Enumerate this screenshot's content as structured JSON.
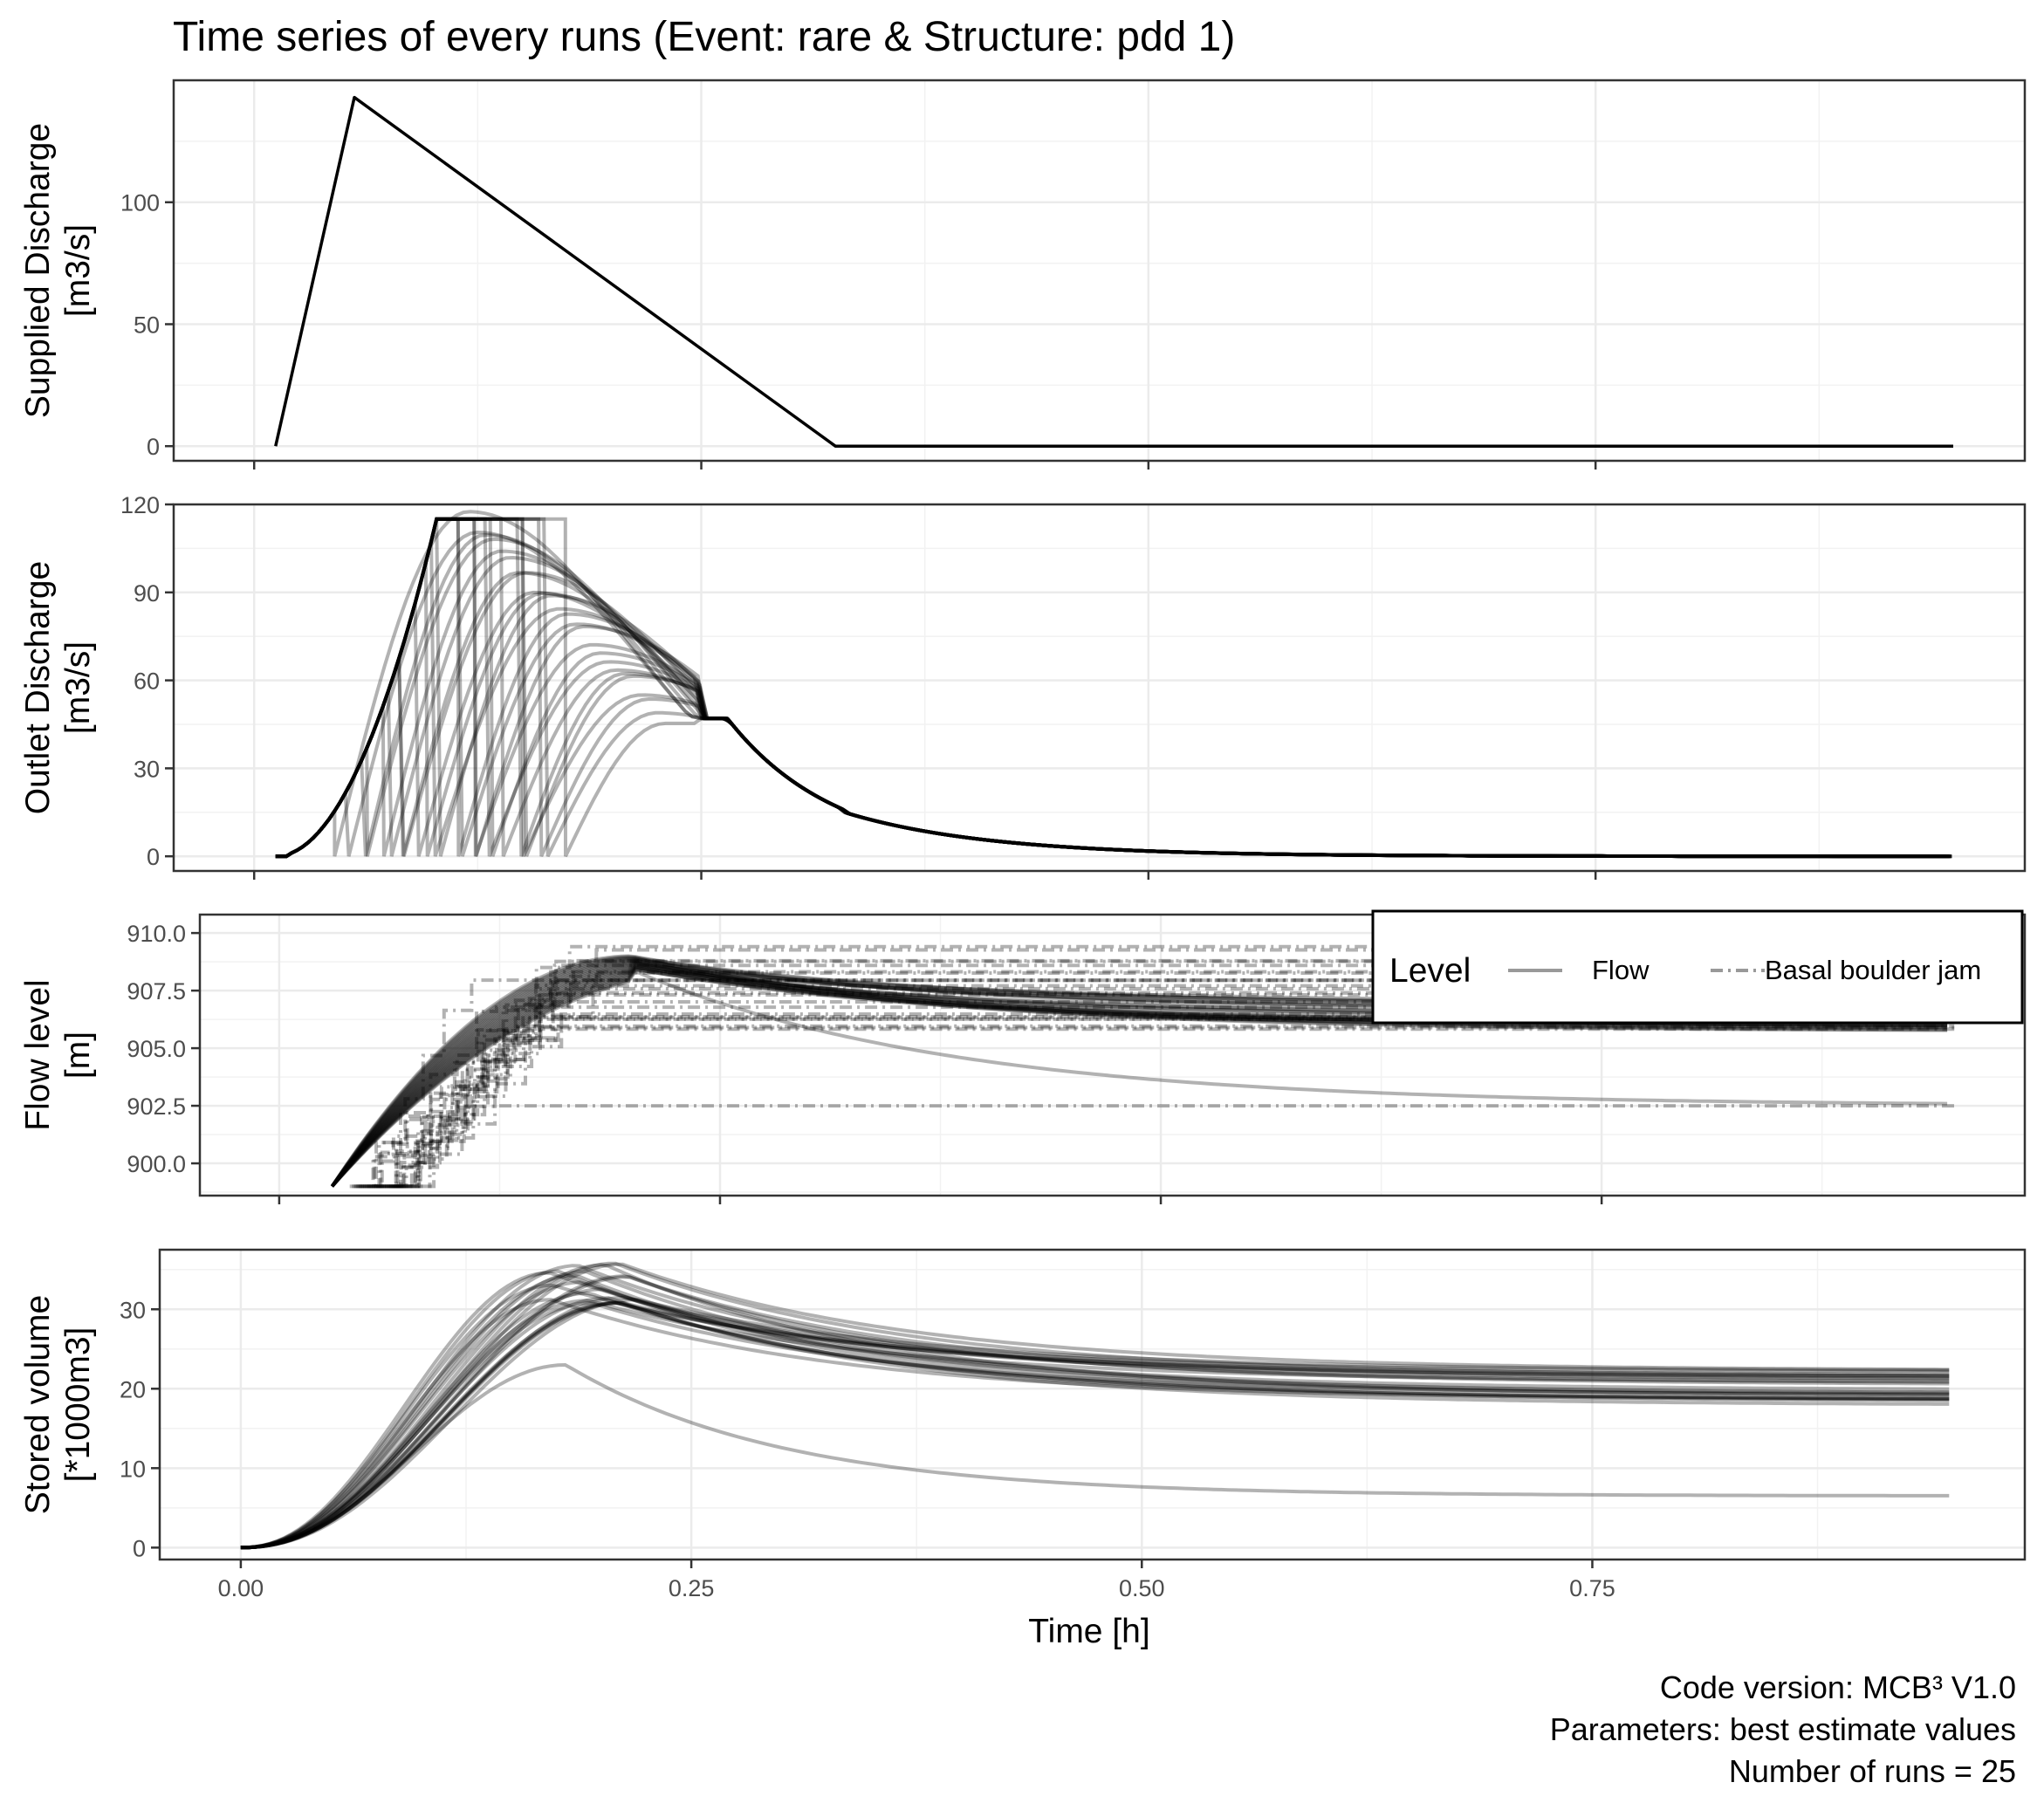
{
  "chart_data": {
    "type": "line",
    "title": "Time series of every runs (Event: rare & Structure: pdd 1)",
    "xlabel": "Time [h]",
    "xlim": [
      -0.045,
      0.99
    ],
    "xticks": [
      "0.00",
      "0.25",
      "0.50",
      "0.75"
    ],
    "x_tick_values": [
      0,
      0.25,
      0.5,
      0.75
    ],
    "caption": [
      "Code version: MCB³ V1.0",
      "Parameters:  best estimate values",
      "Number of runs = 25"
    ],
    "legend": {
      "title": "Level",
      "placement": "top-right of Flow level panel",
      "entries": [
        {
          "label": "Flow",
          "linetype": "solid"
        },
        {
          "label": "Basal boulder jam",
          "linetype": "dashdot"
        }
      ]
    },
    "line_color": "#000000",
    "series_opacity": 0.3,
    "panels": [
      {
        "id": "supplied",
        "ylabel": [
          "Supplied Discharge",
          "[m3/s]"
        ],
        "ylim": [
          -6,
          150
        ],
        "yticks": [
          "0",
          "50",
          "100"
        ],
        "y_tick_values": [
          0,
          50,
          100
        ],
        "series": [
          {
            "x": [
              0.012,
              0.056,
              0.325,
              0.95
            ],
            "y": [
              0,
              143,
              0,
              0
            ]
          }
        ]
      },
      {
        "id": "outlet",
        "ylabel": [
          "Outlet Discharge",
          "[m3/s]"
        ],
        "ylim": [
          -5,
          120
        ],
        "yticks": [
          "0",
          "30",
          "60",
          "90",
          "120"
        ],
        "y_tick_values": [
          0,
          30,
          60,
          90,
          120
        ],
        "peak_range": [
          48,
          115
        ],
        "run_count": 25
      },
      {
        "id": "flowlevel",
        "ylabel": [
          "Flow level",
          "[m]"
        ],
        "ylim": [
          898.6,
          910.8
        ],
        "yticks": [
          "900.0",
          "902.5",
          "905.0",
          "907.5",
          "910.0"
        ],
        "y_tick_values": [
          900,
          902.5,
          905,
          907.5,
          910
        ],
        "flow_final_range": [
          902.5,
          907
        ],
        "jam_final_range": [
          902.5,
          910.2
        ],
        "run_count": 25
      },
      {
        "id": "stored",
        "ylabel": [
          "Stored volume",
          "[*1000m3]"
        ],
        "ylim": [
          -1.5,
          37.5
        ],
        "yticks": [
          "0",
          "10",
          "20",
          "30"
        ],
        "y_tick_values": [
          0,
          10,
          20,
          30
        ],
        "peak_range": [
          23,
          36
        ],
        "final_range": [
          6.5,
          22.3
        ],
        "run_count": 25
      }
    ]
  }
}
